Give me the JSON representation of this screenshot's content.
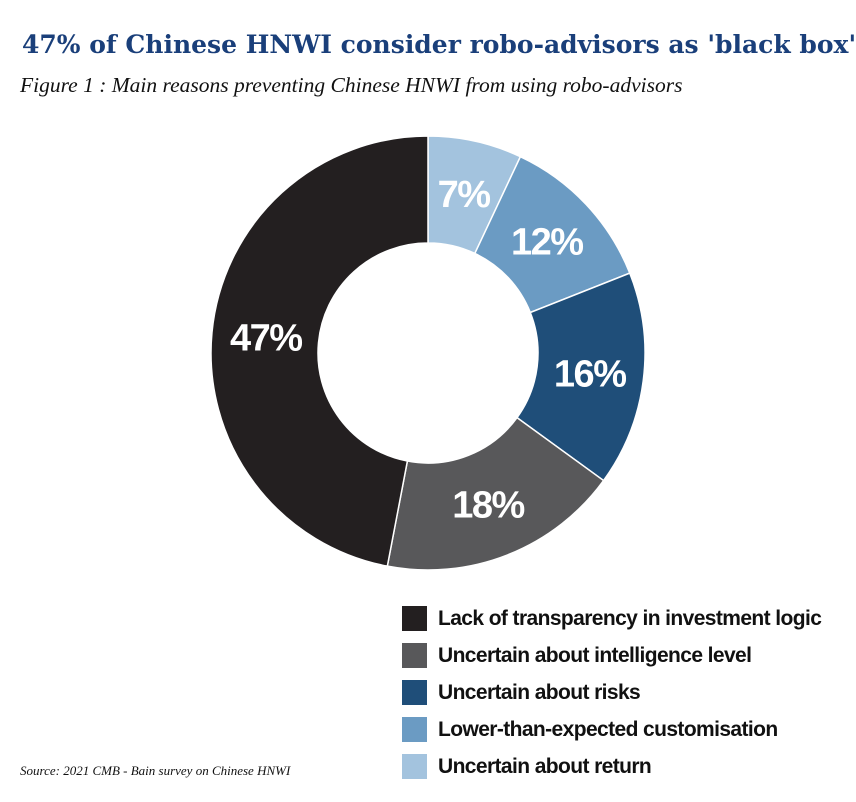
{
  "chart_data": {
    "type": "pie",
    "title": "47% of Chinese HNWI consider robo-advisors as 'black box'",
    "subtitle": "Figure 1 : Main reasons preventing Chinese HNWI from using robo-advisors",
    "source": "Source: 2021 CMB - Bain survey on Chinese HNWI",
    "legend_placement": "bottom-right",
    "slices": [
      {
        "label": "Lack of transparency in investment logic",
        "value": 47,
        "value_label": "47%",
        "color": "#231f20"
      },
      {
        "label": "Uncertain about intelligence level",
        "value": 18,
        "value_label": "18%",
        "color": "#58585a"
      },
      {
        "label": "Uncertain about risks",
        "value": 16,
        "value_label": "16%",
        "color": "#1f4e79"
      },
      {
        "label": "Lower-than-expected customisation",
        "value": 12,
        "value_label": "12%",
        "color": "#6b9bc3"
      },
      {
        "label": "Uncertain about return",
        "value": 7,
        "value_label": "7%",
        "color": "#a3c3de"
      }
    ]
  }
}
